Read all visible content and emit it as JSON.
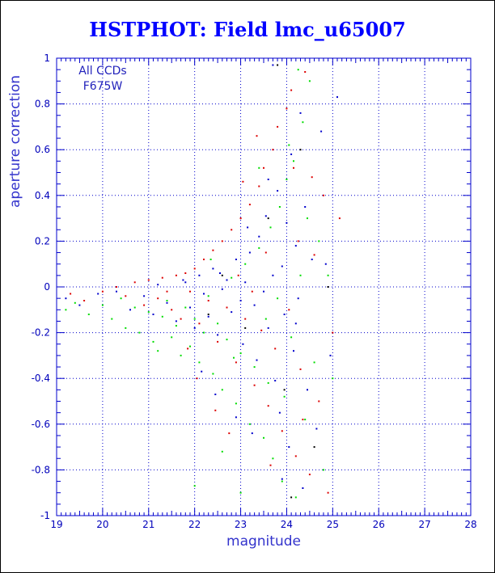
{
  "chart_data": {
    "type": "scatter",
    "title": "HSTPHOT: Field lmc_u65007",
    "xlabel": "magnitude",
    "ylabel": "aperture correction",
    "xlim": [
      19,
      28
    ],
    "ylim": [
      -1,
      1
    ],
    "x_ticks": [
      19,
      20,
      21,
      22,
      23,
      24,
      25,
      26,
      27,
      28
    ],
    "y_ticks": [
      -1,
      -0.8,
      -0.6,
      -0.4,
      -0.2,
      0,
      0.2,
      0.4,
      0.6,
      0.8,
      1
    ],
    "grid": true,
    "grid_style": "dotted",
    "annotations": [
      "All CCDs",
      "F675W"
    ],
    "colors": {
      "title": "#0000ff",
      "axes": "#0000cc",
      "grid": "#0000cc",
      "points": [
        "#0000cc",
        "#00dd00",
        "#dd0000",
        "#000000"
      ]
    },
    "series": [
      {
        "color": "#0000cc",
        "points": [
          [
            19.2,
            -0.05
          ],
          [
            19.5,
            -0.08
          ],
          [
            19.9,
            -0.03
          ],
          [
            20.3,
            -0.02
          ],
          [
            20.6,
            -0.1
          ],
          [
            20.9,
            -0.04
          ],
          [
            21.1,
            -0.12
          ],
          [
            21.2,
            0.01
          ],
          [
            21.4,
            -0.07
          ],
          [
            21.6,
            -0.15
          ],
          [
            21.8,
            0.02
          ],
          [
            21.9,
            -0.09
          ],
          [
            22.0,
            -0.18
          ],
          [
            22.1,
            0.05
          ],
          [
            22.2,
            -0.03
          ],
          [
            22.3,
            -0.13
          ],
          [
            22.4,
            0.08
          ],
          [
            22.5,
            -0.21
          ],
          [
            22.6,
            -0.01
          ],
          [
            22.7,
            0.03
          ],
          [
            22.8,
            -0.11
          ],
          [
            22.9,
            0.12
          ],
          [
            23.0,
            -0.06
          ],
          [
            23.05,
            -0.25
          ],
          [
            23.1,
            0.02
          ],
          [
            23.2,
            0.15
          ],
          [
            23.3,
            -0.08
          ],
          [
            23.35,
            -0.32
          ],
          [
            23.4,
            0.22
          ],
          [
            23.5,
            -0.02
          ],
          [
            23.55,
            0.31
          ],
          [
            23.6,
            -0.18
          ],
          [
            23.7,
            0.05
          ],
          [
            23.75,
            -0.41
          ],
          [
            23.8,
            0.42
          ],
          [
            23.85,
            -0.55
          ],
          [
            23.9,
            0.09
          ],
          [
            23.95,
            -0.12
          ],
          [
            24.0,
            0.28
          ],
          [
            24.05,
            -0.7
          ],
          [
            24.1,
            0.58
          ],
          [
            24.15,
            -0.28
          ],
          [
            24.2,
            0.18
          ],
          [
            24.25,
            -0.05
          ],
          [
            24.3,
            0.76
          ],
          [
            24.35,
            -0.88
          ],
          [
            24.4,
            0.35
          ],
          [
            24.45,
            -0.45
          ],
          [
            24.55,
            0.12
          ],
          [
            24.65,
            -0.62
          ],
          [
            24.75,
            0.68
          ],
          [
            24.85,
            0.1
          ],
          [
            24.95,
            -0.3
          ],
          [
            25.1,
            0.83
          ],
          [
            22.15,
            -0.37
          ],
          [
            22.45,
            -0.47
          ],
          [
            22.9,
            -0.57
          ],
          [
            23.25,
            -0.64
          ],
          [
            23.6,
            0.47
          ],
          [
            23.9,
            -0.84
          ],
          [
            24.2,
            -0.16
          ],
          [
            21.75,
            0.03
          ],
          [
            22.55,
            0.06
          ],
          [
            23.15,
            0.26
          ],
          [
            23.7,
            0.97
          ]
        ]
      },
      {
        "color": "#00dd00",
        "points": [
          [
            19.2,
            -0.1
          ],
          [
            19.4,
            -0.07
          ],
          [
            19.7,
            -0.12
          ],
          [
            20.0,
            -0.08
          ],
          [
            20.2,
            -0.14
          ],
          [
            20.4,
            -0.05
          ],
          [
            20.5,
            -0.18
          ],
          [
            20.7,
            -0.09
          ],
          [
            20.8,
            -0.2
          ],
          [
            21.0,
            -0.11
          ],
          [
            21.1,
            -0.24
          ],
          [
            21.3,
            -0.13
          ],
          [
            21.4,
            -0.06
          ],
          [
            21.5,
            -0.22
          ],
          [
            21.6,
            -0.17
          ],
          [
            21.7,
            -0.3
          ],
          [
            21.8,
            -0.09
          ],
          [
            21.9,
            -0.26
          ],
          [
            22.0,
            -0.14
          ],
          [
            22.1,
            -0.33
          ],
          [
            22.2,
            -0.2
          ],
          [
            22.3,
            -0.04
          ],
          [
            22.4,
            -0.38
          ],
          [
            22.5,
            -0.16
          ],
          [
            22.6,
            -0.45
          ],
          [
            22.7,
            -0.23
          ],
          [
            22.8,
            0.04
          ],
          [
            22.9,
            -0.51
          ],
          [
            23.0,
            -0.29
          ],
          [
            23.1,
            0.1
          ],
          [
            23.2,
            -0.6
          ],
          [
            23.3,
            -0.35
          ],
          [
            23.4,
            0.17
          ],
          [
            23.5,
            -0.66
          ],
          [
            23.6,
            -0.42
          ],
          [
            23.65,
            0.26
          ],
          [
            23.7,
            -0.75
          ],
          [
            23.8,
            -0.05
          ],
          [
            23.85,
            0.35
          ],
          [
            23.9,
            -0.85
          ],
          [
            23.95,
            -0.48
          ],
          [
            24.0,
            0.47
          ],
          [
            24.1,
            -0.22
          ],
          [
            24.15,
            0.55
          ],
          [
            24.2,
            -0.92
          ],
          [
            24.3,
            0.05
          ],
          [
            24.35,
            0.72
          ],
          [
            24.4,
            -0.58
          ],
          [
            24.5,
            0.9
          ],
          [
            24.6,
            -0.33
          ],
          [
            24.7,
            0.2
          ],
          [
            24.8,
            -0.8
          ],
          [
            24.9,
            0.05
          ],
          [
            25.0,
            -0.4
          ],
          [
            22.0,
            -0.87
          ],
          [
            22.6,
            -0.72
          ],
          [
            23.0,
            -0.9
          ],
          [
            23.4,
            0.52
          ],
          [
            24.25,
            0.95
          ],
          [
            21.2,
            -0.28
          ],
          [
            22.35,
            0.12
          ],
          [
            23.55,
            -0.14
          ],
          [
            24.05,
            0.62
          ],
          [
            24.45,
            0.3
          ],
          [
            22.85,
            -0.31
          ]
        ]
      },
      {
        "color": "#dd0000",
        "points": [
          [
            19.3,
            -0.03
          ],
          [
            19.6,
            -0.06
          ],
          [
            20.0,
            -0.02
          ],
          [
            20.3,
            0.0
          ],
          [
            20.5,
            -0.04
          ],
          [
            20.7,
            0.02
          ],
          [
            20.9,
            -0.08
          ],
          [
            21.0,
            0.03
          ],
          [
            21.2,
            -0.05
          ],
          [
            21.3,
            0.04
          ],
          [
            21.5,
            -0.1
          ],
          [
            21.6,
            0.05
          ],
          [
            21.7,
            -0.14
          ],
          [
            21.8,
            0.06
          ],
          [
            21.9,
            -0.02
          ],
          [
            22.0,
            0.08
          ],
          [
            22.1,
            -0.16
          ],
          [
            22.2,
            0.12
          ],
          [
            22.3,
            -0.06
          ],
          [
            22.4,
            0.16
          ],
          [
            22.5,
            -0.24
          ],
          [
            22.6,
            0.2
          ],
          [
            22.7,
            -0.09
          ],
          [
            22.8,
            0.25
          ],
          [
            22.9,
            -0.33
          ],
          [
            23.0,
            0.3
          ],
          [
            23.1,
            -0.14
          ],
          [
            23.2,
            0.36
          ],
          [
            23.3,
            -0.43
          ],
          [
            23.4,
            0.44
          ],
          [
            23.45,
            -0.19
          ],
          [
            23.5,
            0.52
          ],
          [
            23.6,
            -0.52
          ],
          [
            23.7,
            0.6
          ],
          [
            23.75,
            -0.27
          ],
          [
            23.8,
            0.7
          ],
          [
            23.9,
            -0.63
          ],
          [
            24.0,
            0.78
          ],
          [
            24.05,
            -0.1
          ],
          [
            24.1,
            0.86
          ],
          [
            24.2,
            -0.74
          ],
          [
            24.25,
            0.2
          ],
          [
            24.3,
            -0.36
          ],
          [
            24.4,
            0.94
          ],
          [
            24.5,
            -0.82
          ],
          [
            24.6,
            0.14
          ],
          [
            24.7,
            -0.5
          ],
          [
            24.8,
            0.4
          ],
          [
            24.9,
            -0.9
          ],
          [
            25.0,
            -0.2
          ],
          [
            25.15,
            0.3
          ],
          [
            22.45,
            -0.54
          ],
          [
            22.75,
            -0.64
          ],
          [
            23.05,
            0.46
          ],
          [
            23.35,
            0.66
          ],
          [
            23.65,
            -0.78
          ],
          [
            24.15,
            0.52
          ],
          [
            21.4,
            -0.02
          ],
          [
            22.05,
            -0.4
          ],
          [
            22.95,
            0.05
          ],
          [
            23.55,
            0.15
          ],
          [
            24.35,
            -0.58
          ],
          [
            24.55,
            0.48
          ],
          [
            21.85,
            -0.27
          ],
          [
            23.25,
            -0.02
          ]
        ]
      },
      {
        "color": "#000000",
        "points": [
          [
            22.6,
            0.05
          ],
          [
            23.1,
            -0.18
          ],
          [
            23.6,
            0.3
          ],
          [
            23.95,
            -0.45
          ],
          [
            24.3,
            0.6
          ],
          [
            24.6,
            -0.7
          ],
          [
            24.9,
            0.0
          ],
          [
            23.8,
            0.97
          ],
          [
            24.1,
            -0.92
          ],
          [
            22.3,
            -0.12
          ]
        ]
      }
    ]
  }
}
